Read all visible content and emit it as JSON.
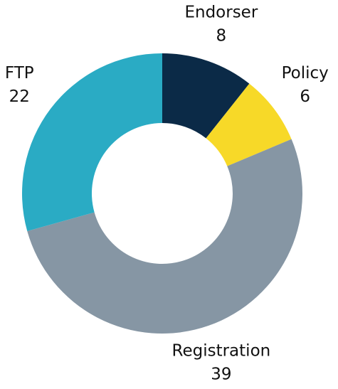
{
  "chart_data": {
    "type": "donut",
    "categories": [
      "Endorser",
      "Policy",
      "Registration",
      "FTP"
    ],
    "values": [
      8,
      6,
      39,
      22
    ],
    "colors": [
      "#0b2a47",
      "#f7d928",
      "#8696a4",
      "#2aabc4"
    ]
  }
}
